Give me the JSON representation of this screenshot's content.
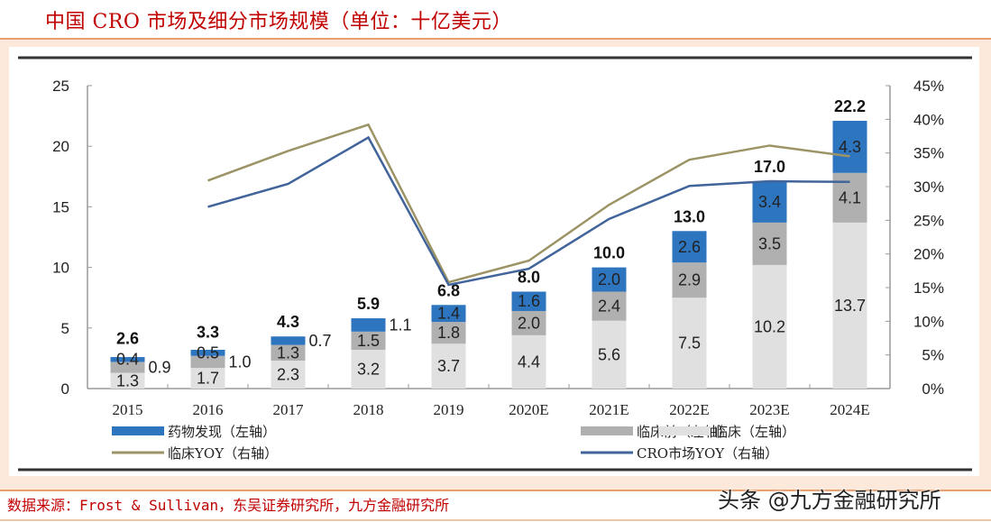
{
  "title": "中国 CRO 市场及细分市场规模（单位：十亿美元）",
  "source": "数据来源：Frost & Sullivan，东吴证券研究所，九方金融研究所",
  "watermark": "头条 @九方金融研究所",
  "chart_data": {
    "type": "bar",
    "stacked": true,
    "categories": [
      "2015",
      "2016",
      "2017",
      "2018",
      "2019",
      "2020E",
      "2021E",
      "2022E",
      "2023E",
      "2024E"
    ],
    "series": [
      {
        "name": "临床（左轴）",
        "axis": "left",
        "color": "#e0e0e0",
        "values": [
          1.3,
          1.7,
          2.3,
          3.2,
          3.7,
          4.4,
          5.6,
          7.5,
          10.2,
          13.7
        ]
      },
      {
        "name": "临床前（左轴）",
        "axis": "left",
        "color": "#b0b0b0",
        "values": [
          0.9,
          1.0,
          1.3,
          1.5,
          1.8,
          2.0,
          2.4,
          2.9,
          3.5,
          4.1
        ]
      },
      {
        "name": "药物发现（左轴）",
        "axis": "left",
        "color": "#2e75c0",
        "values": [
          0.4,
          0.5,
          0.7,
          1.1,
          1.4,
          1.6,
          2.0,
          2.6,
          3.4,
          4.3
        ]
      }
    ],
    "totals": [
      "2.6",
      "3.3",
      "4.3",
      "5.9",
      "6.8",
      "8.0",
      "10.0",
      "13.0",
      "17.0",
      "22.2"
    ],
    "lines": [
      {
        "name": "临床YOY（右轴）",
        "axis": "right",
        "type": "line",
        "color": "#9c9466",
        "values": [
          null,
          30.9,
          35.3,
          39.2,
          15.8,
          19.0,
          27.3,
          34.0,
          36.1,
          34.5
        ]
      },
      {
        "name": "CRO市场YOY（右轴）",
        "axis": "right",
        "type": "line",
        "color": "#41649a",
        "values": [
          null,
          27.0,
          30.4,
          37.3,
          15.4,
          17.8,
          25.2,
          30.1,
          30.8,
          30.7
        ]
      }
    ],
    "left_axis": {
      "ylim": [
        0,
        25
      ],
      "ticks": [
        "0",
        "5",
        "10",
        "15",
        "20",
        "25"
      ]
    },
    "right_axis": {
      "ylim": [
        0,
        45
      ],
      "ticks": [
        "0%",
        "5%",
        "10%",
        "15%",
        "20%",
        "25%",
        "30%",
        "35%",
        "40%",
        "45%"
      ]
    },
    "legend": "bottom",
    "legend_order": [
      "药物发现（左轴）",
      "临床前（左轴）",
      "临床（左轴）",
      "临床YOY（右轴）",
      "CRO市场YOY（右轴）"
    ]
  }
}
